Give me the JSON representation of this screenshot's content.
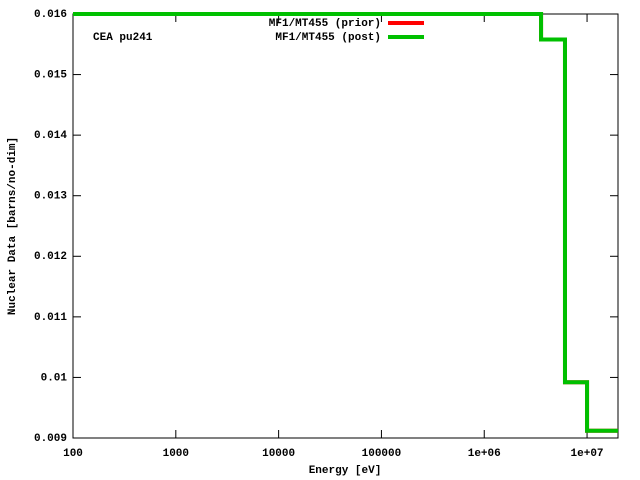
{
  "chart_data": {
    "type": "step",
    "annotation": "CEA pu241",
    "xlabel": "Energy [eV]",
    "ylabel": "Nuclear Data [barns/no-dim]",
    "x": [
      100,
      3570000,
      6100000,
      10000000,
      20000000
    ],
    "series": [
      {
        "name": "MF1/MT455 (prior)",
        "color": "#ff0000",
        "values": [
          0.016,
          0.01558,
          0.00992,
          0.00912,
          0.00912
        ]
      },
      {
        "name": "MF1/MT455 (post)",
        "color": "#00c000",
        "values": [
          0.016,
          0.01558,
          0.00992,
          0.00912,
          0.00912
        ]
      }
    ],
    "xlog": true,
    "xlim": [
      100,
      20000000
    ],
    "xticks": [
      100,
      1000,
      10000,
      100000,
      {
        "value": 1000000,
        "label": "1e+06"
      },
      {
        "value": 10000000,
        "label": "1e+07"
      }
    ],
    "ylim": [
      0.009,
      0.016
    ],
    "yticks": [
      0.009,
      0.01,
      0.011,
      0.012,
      0.013,
      0.014,
      0.015,
      0.016
    ],
    "legend": "top-right"
  }
}
